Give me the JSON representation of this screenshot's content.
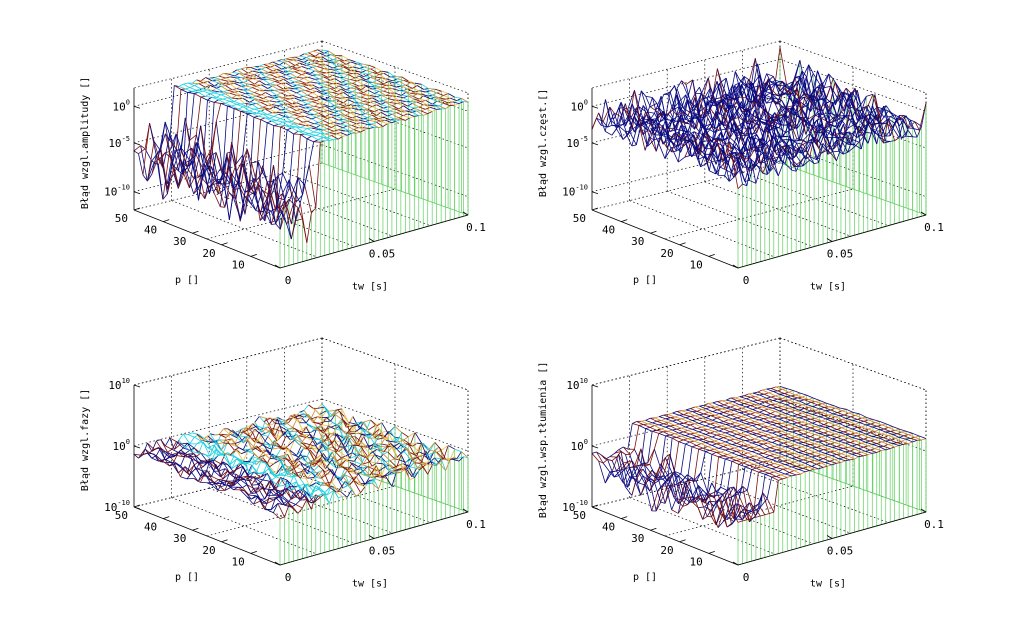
{
  "figure": {
    "background": "#ffffff",
    "colors": {
      "mesh_blue": "#0a0a80",
      "mesh_red": "#7a1010",
      "mesh_cyan": "#20d0e0",
      "mesh_orange": "#d08a30",
      "mesh_yellow": "#e8c050",
      "curtain": "#60d060"
    }
  },
  "chart_data": [
    {
      "type": "surface",
      "zlabel": "Błąd wzgl.amplitudy []",
      "xlabel": "tw [s]",
      "ylabel": "p []",
      "xticks": [
        "0",
        "0.05",
        "0.1"
      ],
      "xlim": [
        0,
        0.1
      ],
      "yticks": [
        "10",
        "20",
        "30",
        "40",
        "50"
      ],
      "ylim": [
        0,
        50
      ],
      "zticks": [
        {
          "base": "10",
          "exp": "0"
        },
        {
          "base": "10",
          "exp": "-5"
        },
        {
          "base": "10",
          "exp": "-10"
        }
      ],
      "zscale": "log",
      "zlim": [
        1e-10,
        1
      ],
      "surface": "error low (~1e-5 … 1e-2) for small tw, rising to ~1 plateau for tw > ~0.02",
      "colormap": [
        "#0a0a80",
        "#7a1010",
        "#20d0e0",
        "#e8c050",
        "#d08a30"
      ],
      "grid": true
    },
    {
      "type": "surface",
      "zlabel": "Błąd wzgl.częst.[]",
      "xlabel": "tw [s]",
      "ylabel": "p []",
      "xticks": [
        "0",
        "0.05",
        "0.1"
      ],
      "xlim": [
        0,
        0.1
      ],
      "yticks": [
        "10",
        "20",
        "30",
        "40",
        "50"
      ],
      "ylim": [
        0,
        50
      ],
      "zticks": [
        {
          "base": "10",
          "exp": "0"
        },
        {
          "base": "10",
          "exp": "-5"
        },
        {
          "base": "10",
          "exp": "-10"
        }
      ],
      "zscale": "log",
      "zlim": [
        1e-10,
        1
      ],
      "surface": "oscillating error around ~1e-3 across whole domain, peaks near 1",
      "colormap": [
        "#0a0a80",
        "#7a1010",
        "#20d0e0"
      ],
      "grid": true
    },
    {
      "type": "surface",
      "zlabel": "Błąd wzgl.fazy []",
      "xlabel": "tw [s]",
      "ylabel": "p []",
      "xticks": [
        "0",
        "0.05",
        "0.1"
      ],
      "xlim": [
        0,
        0.1
      ],
      "yticks": [
        "10",
        "20",
        "30",
        "40",
        "50"
      ],
      "ylim": [
        0,
        50
      ],
      "zticks": [
        {
          "base": "10",
          "exp": "10"
        },
        {
          "base": "10",
          "exp": "0"
        },
        {
          "base": "10",
          "exp": "-10"
        }
      ],
      "zscale": "log",
      "zlim": [
        1e-10,
        10000000000.0
      ],
      "surface": "noisy multicolor error around ~1e-2 … 1",
      "colormap": [
        "#0a0a80",
        "#7a1010",
        "#20d0e0",
        "#e8c050",
        "#d08a30"
      ],
      "grid": true
    },
    {
      "type": "surface",
      "zlabel": "Błąd wzgl.wsp.tłumienia []",
      "xlabel": "tw [s]",
      "ylabel": "p []",
      "xticks": [
        "0",
        "0.05",
        "0.1"
      ],
      "xlim": [
        0,
        0.1
      ],
      "yticks": [
        "10",
        "20",
        "30",
        "40",
        "50"
      ],
      "ylim": [
        0,
        50
      ],
      "zticks": [
        {
          "base": "10",
          "exp": "10"
        },
        {
          "base": "10",
          "exp": "0"
        },
        {
          "base": "10",
          "exp": "-10"
        }
      ],
      "zscale": "log",
      "zlim": [
        1e-10,
        10000000000.0
      ],
      "surface": "smooth plateau ~1 for tw > ~0.02, lower oscillating values for small tw",
      "colormap": [
        "#0a0a80",
        "#7a1010",
        "#d08a30"
      ],
      "grid": true
    }
  ]
}
